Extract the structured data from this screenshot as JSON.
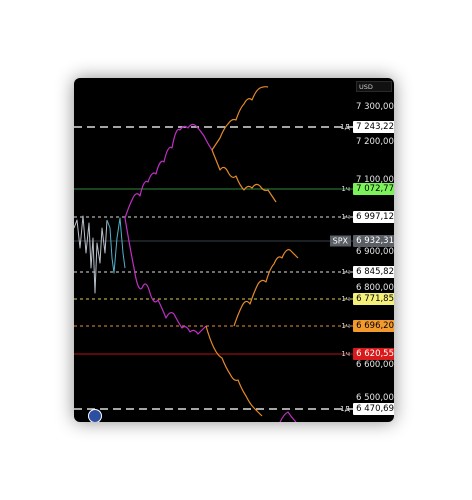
{
  "currency": "USD",
  "symbol": "SPX",
  "axis_ticks": [
    "7 300,00",
    "7 200,00",
    "7 100,00",
    "6 900,00",
    "6 800,00",
    "6 600,00",
    "6 500,00"
  ],
  "price_tags": [
    {
      "interval": "1Д",
      "value": "7 243,22",
      "bg": "#ffffff",
      "fg": "#000000"
    },
    {
      "interval": "1ч",
      "value": "7 072,77",
      "bg": "#7cf25a",
      "fg": "#000000"
    },
    {
      "interval": "1ч",
      "value": "6 997,12",
      "bg": "#ffffff",
      "fg": "#000000"
    },
    {
      "interval": "",
      "value": "6 932,31",
      "bg": "#5a5f66",
      "fg": "#ffffff"
    },
    {
      "interval": "1ч",
      "value": "6 845,82",
      "bg": "#ffffff",
      "fg": "#000000"
    },
    {
      "interval": "1ч",
      "value": "6 771,85",
      "bg": "#f5f07a",
      "fg": "#000000"
    },
    {
      "interval": "1ч",
      "value": "6 696,20",
      "bg": "#f29a2e",
      "fg": "#000000"
    },
    {
      "interval": "1ч",
      "value": "6 620,55",
      "bg": "#d91a1a",
      "fg": "#ffffff"
    },
    {
      "interval": "1Д",
      "value": "6 470,69",
      "bg": "#ffffff",
      "fg": "#000000"
    }
  ],
  "colors": {
    "history": "#b9c1cc",
    "history_recent": "#4fb3c8",
    "projection_a": "#c02fc4",
    "projection_b": "#e58a2a",
    "level_green": "#2f8a3a",
    "level_red": "#b21313",
    "level_orange": "#e2953a",
    "level_yellow": "#dccf4e",
    "level_white": "#dcdcdc"
  }
}
